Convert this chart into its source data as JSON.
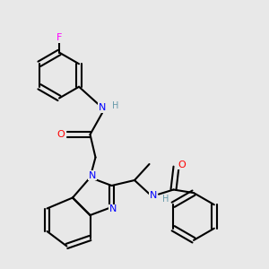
{
  "background_color": "#e8e8e8",
  "atom_colors": {
    "N": "#0000ff",
    "O": "#ff0000",
    "F": "#ff00ff",
    "C": "#000000",
    "H": "#6699aa"
  },
  "bond_color": "#000000",
  "figsize": [
    3.0,
    3.0
  ],
  "dpi": 100
}
